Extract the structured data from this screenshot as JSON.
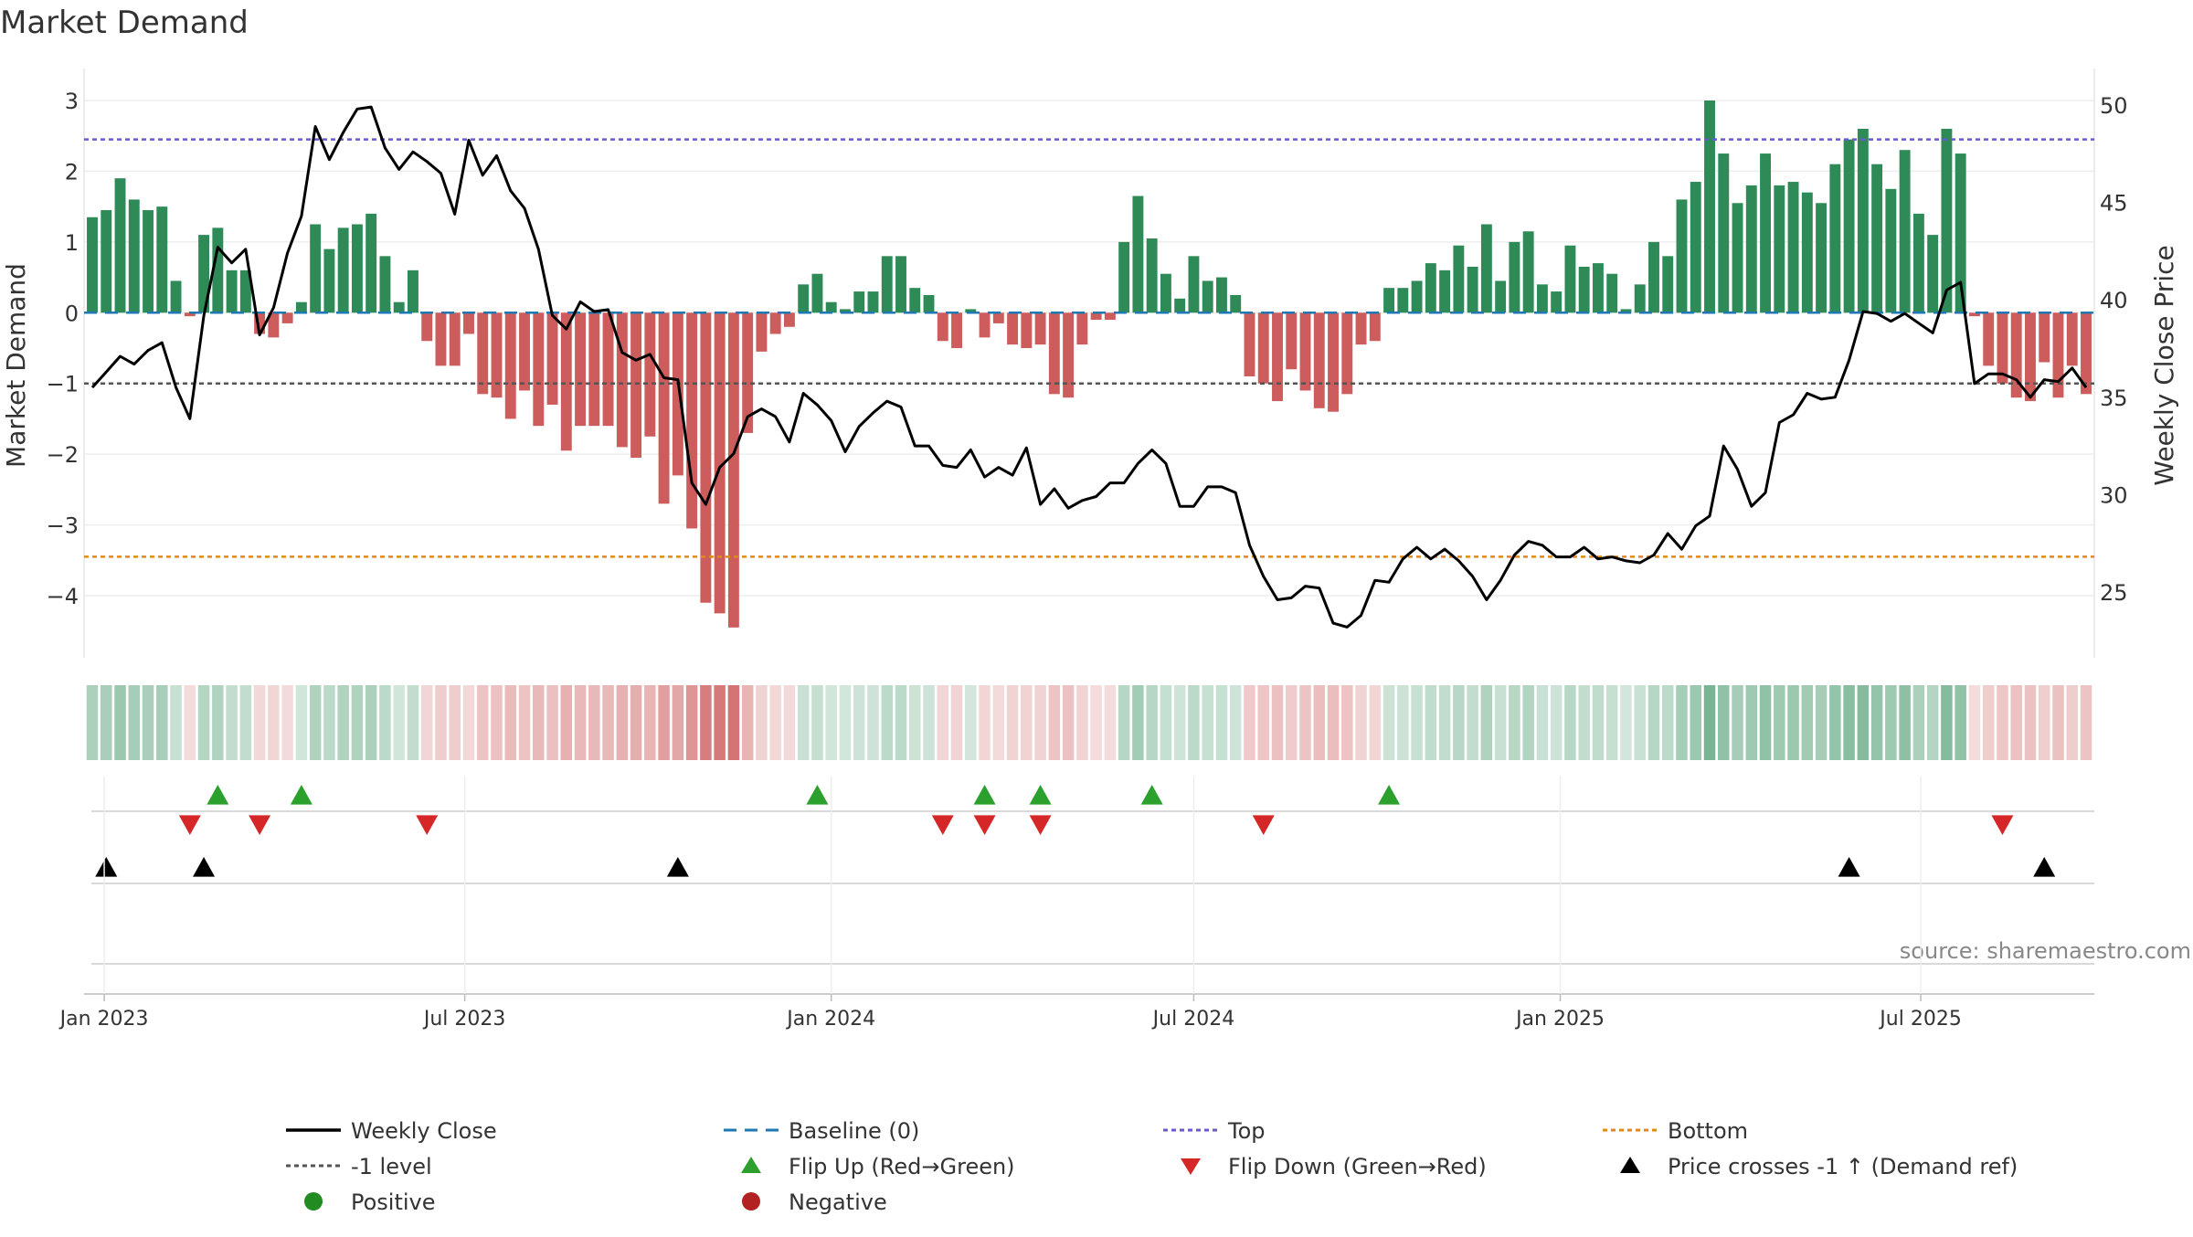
{
  "chart_data": {
    "type": "bar",
    "title": "Market Demand",
    "ylabel": "Market Demand",
    "y2label": "Weekly Close Price",
    "source": "source: sharemaestro.com",
    "ylim": [
      -4.8,
      3.4
    ],
    "y2lim": [
      22.7,
      52.7
    ],
    "y_ticks": [
      3,
      2,
      1,
      0,
      -1,
      -2,
      -3,
      -4
    ],
    "y_tick_labels": [
      "3",
      "2",
      "1",
      "0",
      "−1",
      "−2",
      "−3",
      "−4"
    ],
    "y2_ticks": [
      50,
      45,
      40,
      35,
      30,
      25
    ],
    "y2_tick_labels": [
      "50",
      "45",
      "40",
      "35",
      "30",
      "25"
    ],
    "x_start": "2022-12-26",
    "x_end": "2025-09-22",
    "x_ticks": [
      "2023-01-01",
      "2023-07-01",
      "2024-01-01",
      "2024-07-01",
      "2025-01-01",
      "2025-07-01"
    ],
    "x_tick_labels": [
      "Jan 2023",
      "Jul 2023",
      "Jan 2024",
      "Jul 2024",
      "Jan 2025",
      "Jul 2025"
    ],
    "levels": {
      "top": 2.45,
      "minus_one": -1.0,
      "bottom": -3.45,
      "baseline": 0
    },
    "colors": {
      "positive": "#2e8b57",
      "negative": "#cd5c5c",
      "price": "#000000",
      "baseline": "#1f77b4",
      "top": "#6a5acd",
      "minus_one": "#555555",
      "bottom": "#e08a1e",
      "flip_up": "#2ca02c",
      "flip_down": "#d62728",
      "cross": "#000000",
      "pos_marker": "#228b22",
      "neg_marker": "#b22222"
    },
    "demand": [
      1.35,
      1.45,
      1.9,
      1.6,
      1.45,
      1.5,
      0.45,
      -0.05,
      1.1,
      1.2,
      0.6,
      0.6,
      -0.3,
      -0.35,
      -0.15,
      0.15,
      1.25,
      0.9,
      1.2,
      1.25,
      1.4,
      0.8,
      0.15,
      0.6,
      -0.4,
      -0.75,
      -0.75,
      -0.3,
      -1.15,
      -1.2,
      -1.5,
      -1.1,
      -1.6,
      -1.3,
      -1.95,
      -1.6,
      -1.6,
      -1.6,
      -1.9,
      -2.05,
      -1.75,
      -2.7,
      -2.3,
      -3.05,
      -4.1,
      -4.25,
      -4.45,
      -1.7,
      -0.55,
      -0.3,
      -0.2,
      0.4,
      0.55,
      0.15,
      0.05,
      0.3,
      0.3,
      0.8,
      0.8,
      0.35,
      0.25,
      -0.4,
      -0.5,
      0.05,
      -0.35,
      -0.15,
      -0.45,
      -0.5,
      -0.45,
      -1.15,
      -1.2,
      -0.45,
      -0.1,
      -0.1,
      1.0,
      1.65,
      1.05,
      0.55,
      0.2,
      0.8,
      0.45,
      0.5,
      0.25,
      -0.9,
      -1.0,
      -1.25,
      -0.8,
      -1.1,
      -1.35,
      -1.4,
      -1.15,
      -0.45,
      -0.4,
      0.35,
      0.35,
      0.45,
      0.7,
      0.6,
      0.95,
      0.65,
      1.25,
      0.45,
      1.0,
      1.15,
      0.4,
      0.3,
      0.95,
      0.65,
      0.7,
      0.55,
      0.05,
      0.4,
      1.0,
      0.8,
      1.6,
      1.85,
      3.0,
      2.25,
      1.55,
      1.8,
      2.25,
      1.8,
      1.85,
      1.7,
      1.55,
      2.1,
      2.45,
      2.6,
      2.1,
      1.75,
      2.3,
      1.4,
      1.1,
      2.6,
      2.25,
      -0.05,
      -0.75,
      -1.0,
      -1.2,
      -1.25,
      -0.7,
      -1.2,
      -0.75,
      -1.15
    ],
    "price": [
      35.5,
      36.3,
      37.1,
      36.7,
      37.4,
      37.8,
      35.5,
      33.9,
      39.2,
      42.7,
      41.9,
      42.6,
      38.2,
      39.6,
      42.4,
      44.3,
      48.9,
      47.2,
      48.6,
      49.8,
      49.9,
      47.8,
      46.7,
      47.6,
      47.1,
      46.5,
      44.4,
      48.2,
      46.4,
      47.4,
      45.6,
      44.7,
      42.6,
      39.2,
      38.5,
      39.9,
      39.4,
      39.5,
      37.3,
      36.9,
      37.2,
      36.0,
      35.9,
      30.6,
      29.5,
      31.4,
      32.1,
      34.0,
      34.4,
      34.0,
      32.7,
      35.2,
      34.6,
      33.8,
      32.2,
      33.5,
      34.2,
      34.8,
      34.5,
      32.5,
      32.5,
      31.5,
      31.4,
      32.3,
      30.9,
      31.4,
      31.0,
      32.4,
      29.5,
      30.3,
      29.3,
      29.7,
      29.9,
      30.6,
      30.6,
      31.6,
      32.3,
      31.6,
      29.4,
      29.4,
      30.4,
      30.4,
      30.1,
      27.4,
      25.8,
      24.6,
      24.7,
      25.3,
      25.2,
      23.4,
      23.2,
      23.8,
      25.6,
      25.5,
      26.7,
      27.3,
      26.7,
      27.2,
      26.6,
      25.8,
      24.6,
      25.6,
      26.9,
      27.6,
      27.4,
      26.8,
      26.8,
      27.3,
      26.7,
      26.8,
      26.6,
      26.5,
      26.9,
      28.0,
      27.2,
      28.4,
      28.9,
      32.5,
      31.3,
      29.4,
      30.1,
      33.7,
      34.1,
      35.2,
      34.9,
      35.0,
      36.9,
      39.4,
      39.3,
      38.9,
      39.3,
      38.8,
      38.3,
      40.5,
      40.9,
      35.7,
      36.2,
      36.2,
      35.9,
      35.0,
      35.9,
      35.8,
      36.5,
      35.5
    ],
    "heatmap": {
      "type": "heatmap",
      "values": "demand",
      "max_alpha": 0.85,
      "min_alpha": 0.2
    },
    "flip_up_weeks": [
      9,
      15,
      52,
      64,
      68,
      76,
      93
    ],
    "flip_down_weeks": [
      7,
      12,
      24,
      61,
      64,
      68,
      84,
      137
    ],
    "price_cross_weeks": [
      1,
      8,
      42,
      126,
      140
    ],
    "legend": [
      {
        "key": "weekly-close",
        "label": "Weekly Close"
      },
      {
        "key": "baseline",
        "label": "Baseline (0)"
      },
      {
        "key": "top",
        "label": "Top"
      },
      {
        "key": "bottom",
        "label": "Bottom"
      },
      {
        "key": "minus-one",
        "label": "-1 level"
      },
      {
        "key": "flip-up",
        "label": "Flip Up (Red→Green)"
      },
      {
        "key": "flip-down",
        "label": "Flip Down (Green→Red)"
      },
      {
        "key": "price-cross",
        "label": "Price crosses -1 ↑ (Demand ref)"
      },
      {
        "key": "positive",
        "label": "Positive"
      },
      {
        "key": "negative",
        "label": "Negative"
      }
    ]
  }
}
